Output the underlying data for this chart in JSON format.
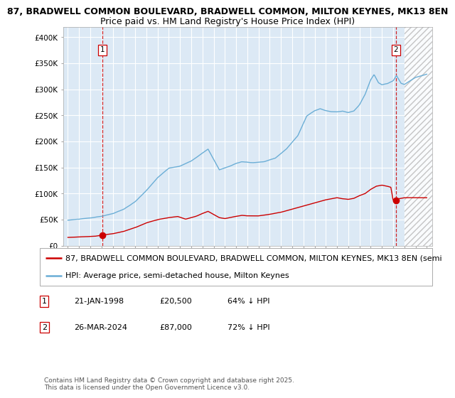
{
  "title_line1": "87, BRADWELL COMMON BOULEVARD, BRADWELL COMMON, MILTON KEYNES, MK13 8EN",
  "title_line2": "Price paid vs. HM Land Registry's House Price Index (HPI)",
  "ylim": [
    0,
    420000
  ],
  "yticks": [
    0,
    50000,
    100000,
    150000,
    200000,
    250000,
    300000,
    350000,
    400000
  ],
  "ytick_labels": [
    "£0",
    "£50K",
    "£100K",
    "£150K",
    "£200K",
    "£250K",
    "£300K",
    "£350K",
    "£400K"
  ],
  "xlim_start": 1994.6,
  "xlim_end": 2027.5,
  "hatch_start": 2025.0,
  "sale1_date": 1998.055,
  "sale1_price": 20500,
  "sale1_label": "1",
  "sale1_ann_text": "21-JAN-1998",
  "sale1_price_text": "£20,500",
  "sale1_hpi_text": "64% ↓ HPI",
  "sale2_date": 2024.23,
  "sale2_price": 87000,
  "sale2_label": "2",
  "sale2_ann_text": "26-MAR-2024",
  "sale2_price_text": "£87,000",
  "sale2_hpi_text": "72% ↓ HPI",
  "legend_line1": "87, BRADWELL COMMON BOULEVARD, BRADWELL COMMON, MILTON KEYNES, MK13 8EN (semi",
  "legend_line2": "HPI: Average price, semi-detached house, Milton Keynes",
  "property_color": "#cc0000",
  "hpi_color": "#6baed6",
  "background_color": "#dce9f5",
  "grid_color": "#ffffff",
  "copyright_text": "Contains HM Land Registry data © Crown copyright and database right 2025.\nThis data is licensed under the Open Government Licence v3.0.",
  "title1_fontsize": 9,
  "title2_fontsize": 9,
  "tick_fontsize": 7.5,
  "legend_fontsize": 8,
  "footer_fontsize": 8,
  "copyright_fontsize": 6.5
}
